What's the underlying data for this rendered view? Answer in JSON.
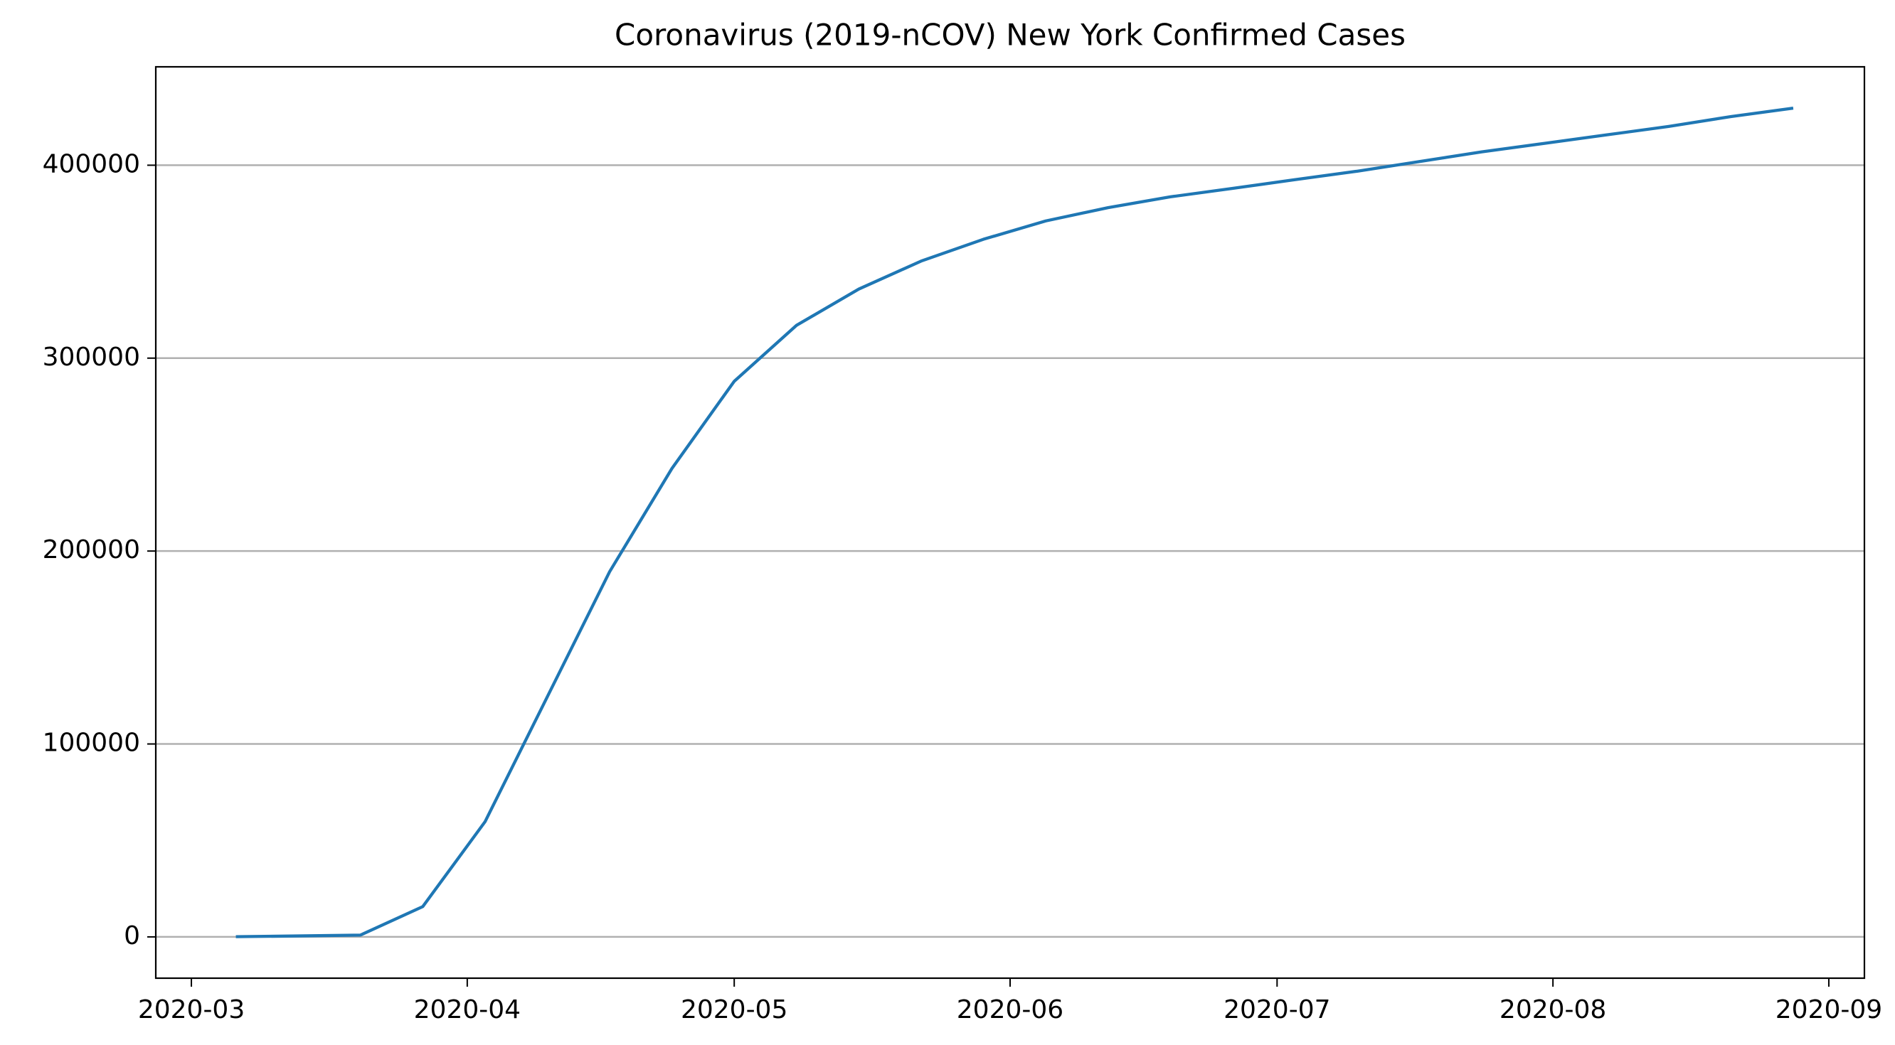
{
  "chart_data": {
    "type": "line",
    "title": "Coronavirus (2019-nCOV) New York Confirmed Cases",
    "x": [
      "2020-03-06",
      "2020-03-13",
      "2020-03-20",
      "2020-03-27",
      "2020-04-03",
      "2020-04-10",
      "2020-04-17",
      "2020-04-24",
      "2020-05-01",
      "2020-05-08",
      "2020-05-15",
      "2020-05-22",
      "2020-05-29",
      "2020-06-05",
      "2020-06-12",
      "2020-06-19",
      "2020-06-26",
      "2020-07-03",
      "2020-07-10",
      "2020-07-17",
      "2020-07-24",
      "2020-07-31",
      "2020-08-07",
      "2020-08-14",
      "2020-08-21",
      "2020-08-28"
    ],
    "series": [
      {
        "color": "#1f77b4",
        "values": [
          100,
          500,
          950,
          15700,
          59700,
          124500,
          189300,
          242800,
          288000,
          317000,
          335800,
          350300,
          361600,
          371100,
          378000,
          383600,
          388000,
          392500,
          396900,
          401900,
          406900,
          411300,
          415700,
          420100,
          425200,
          429600
        ]
      }
    ],
    "xlim": [
      "2020-02-26",
      "2020-09-05"
    ],
    "xticks": [
      {
        "value": "2020-03-01",
        "label": "2020-03"
      },
      {
        "value": "2020-04-01",
        "label": "2020-04"
      },
      {
        "value": "2020-05-01",
        "label": "2020-05"
      },
      {
        "value": "2020-06-01",
        "label": "2020-06"
      },
      {
        "value": "2020-07-01",
        "label": "2020-07"
      },
      {
        "value": "2020-08-01",
        "label": "2020-08"
      },
      {
        "value": "2020-09-01",
        "label": "2020-09"
      }
    ],
    "ylim": [
      -21400,
      451000
    ],
    "yticks": [
      0,
      100000,
      200000,
      300000,
      400000
    ],
    "grid": "y"
  }
}
